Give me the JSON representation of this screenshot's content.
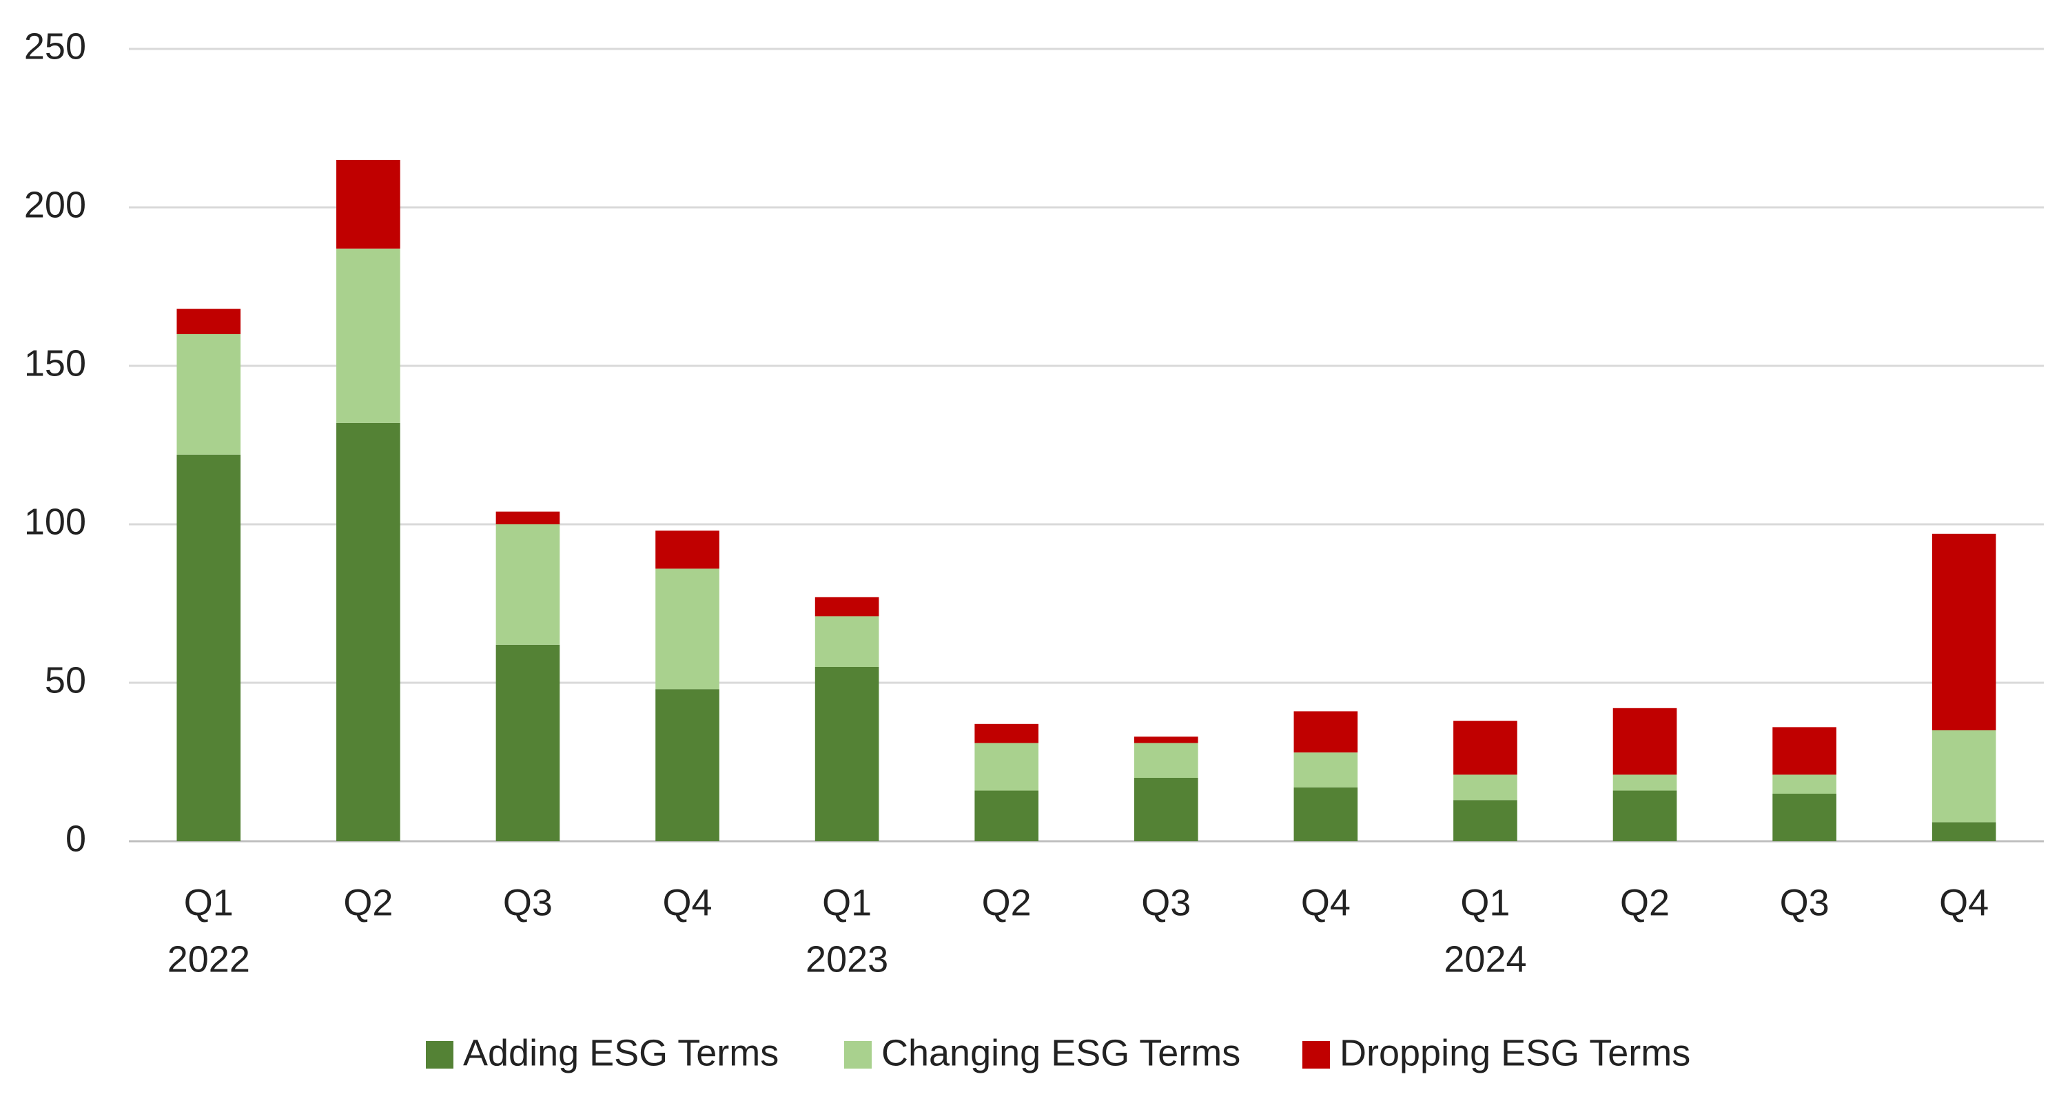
{
  "chart_data": {
    "type": "stacked_bar",
    "categories": [
      "Q1",
      "Q2",
      "Q3",
      "Q4",
      "Q1",
      "Q2",
      "Q3",
      "Q4",
      "Q1",
      "Q2",
      "Q3",
      "Q4"
    ],
    "year_labels": [
      "2022",
      null,
      null,
      null,
      "2023",
      null,
      null,
      null,
      "2024",
      null,
      null,
      null
    ],
    "series": [
      {
        "name": "Adding ESG Terms",
        "color": "#548235",
        "values": [
          122,
          132,
          62,
          48,
          55,
          16,
          20,
          17,
          13,
          16,
          15,
          6
        ]
      },
      {
        "name": "Changing ESG Terms",
        "color": "#a9d18e",
        "values": [
          38,
          55,
          38,
          38,
          16,
          15,
          11,
          11,
          8,
          5,
          6,
          29
        ]
      },
      {
        "name": "Dropping ESG Terms",
        "color": "#c00000",
        "values": [
          8,
          28,
          4,
          12,
          6,
          6,
          2,
          13,
          17,
          21,
          15,
          62
        ]
      }
    ],
    "ylim": [
      0,
      250
    ],
    "yticks": [
      0,
      50,
      100,
      150,
      200,
      250
    ],
    "grid": true,
    "legend": "bottom"
  }
}
